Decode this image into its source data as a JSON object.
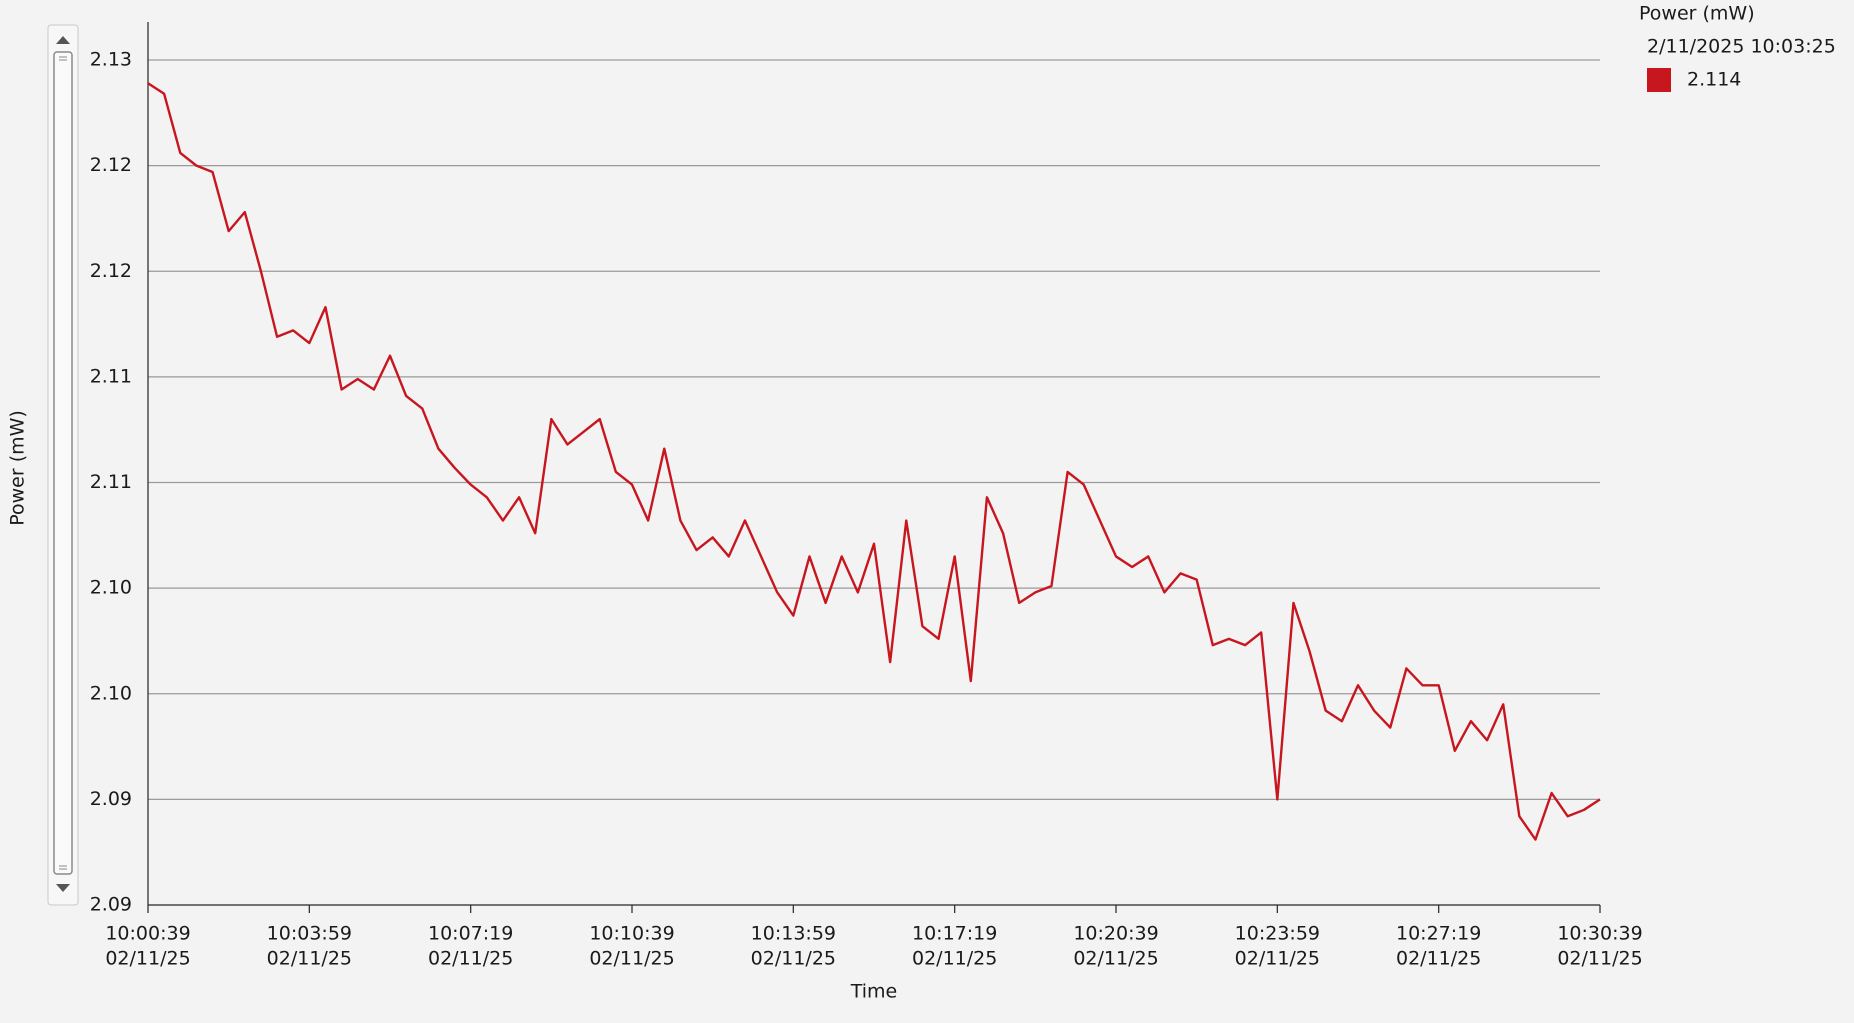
{
  "chart_data": {
    "type": "line",
    "xlabel": "Time",
    "ylabel": "Power (mW)",
    "ylim": [
      2.0875,
      2.1275
    ],
    "yticks": [
      {
        "value": 2.0875,
        "label": "2.09"
      },
      {
        "value": 2.0925,
        "label": "2.09"
      },
      {
        "value": 2.0975,
        "label": "2.10"
      },
      {
        "value": 2.1025,
        "label": "2.10"
      },
      {
        "value": 2.1075,
        "label": "2.11"
      },
      {
        "value": 2.1125,
        "label": "2.11"
      },
      {
        "value": 2.1175,
        "label": "2.12"
      },
      {
        "value": 2.1225,
        "label": "2.12"
      },
      {
        "value": 2.1275,
        "label": "2.13"
      }
    ],
    "xlim": [
      "2025-02-11T10:00:39",
      "2025-02-11T10:30:39"
    ],
    "xticks": [
      {
        "value": "2025-02-11T10:00:39",
        "label": [
          "10:00:39",
          "02/11/25"
        ]
      },
      {
        "value": "2025-02-11T10:03:59",
        "label": [
          "10:03:59",
          "02/11/25"
        ]
      },
      {
        "value": "2025-02-11T10:07:19",
        "label": [
          "10:07:19",
          "02/11/25"
        ]
      },
      {
        "value": "2025-02-11T10:10:39",
        "label": [
          "10:10:39",
          "02/11/25"
        ]
      },
      {
        "value": "2025-02-11T10:13:59",
        "label": [
          "10:13:59",
          "02/11/25"
        ]
      },
      {
        "value": "2025-02-11T10:17:19",
        "label": [
          "10:17:19",
          "02/11/25"
        ]
      },
      {
        "value": "2025-02-11T10:20:39",
        "label": [
          "10:20:39",
          "02/11/25"
        ]
      },
      {
        "value": "2025-02-11T10:23:59",
        "label": [
          "10:23:59",
          "02/11/25"
        ]
      },
      {
        "value": "2025-02-11T10:27:19",
        "label": [
          "10:27:19",
          "02/11/25"
        ]
      },
      {
        "value": "2025-02-11T10:30:39",
        "label": [
          "10:30:39",
          "02/11/25"
        ]
      }
    ],
    "grid": true,
    "x": [
      "2025-02-11T10:00:39",
      "2025-02-11T10:00:59",
      "2025-02-11T10:01:19",
      "2025-02-11T10:01:39",
      "2025-02-11T10:01:59",
      "2025-02-11T10:02:19",
      "2025-02-11T10:02:39",
      "2025-02-11T10:02:59",
      "2025-02-11T10:03:19",
      "2025-02-11T10:03:39",
      "2025-02-11T10:03:59",
      "2025-02-11T10:04:19",
      "2025-02-11T10:04:39",
      "2025-02-11T10:04:59",
      "2025-02-11T10:05:19",
      "2025-02-11T10:05:39",
      "2025-02-11T10:05:59",
      "2025-02-11T10:06:19",
      "2025-02-11T10:06:39",
      "2025-02-11T10:06:59",
      "2025-02-11T10:07:19",
      "2025-02-11T10:07:39",
      "2025-02-11T10:07:59",
      "2025-02-11T10:08:19",
      "2025-02-11T10:08:39",
      "2025-02-11T10:08:59",
      "2025-02-11T10:09:19",
      "2025-02-11T10:09:39",
      "2025-02-11T10:09:59",
      "2025-02-11T10:10:19",
      "2025-02-11T10:10:39",
      "2025-02-11T10:10:59",
      "2025-02-11T10:11:19",
      "2025-02-11T10:11:39",
      "2025-02-11T10:11:59",
      "2025-02-11T10:12:19",
      "2025-02-11T10:12:39",
      "2025-02-11T10:12:59",
      "2025-02-11T10:13:19",
      "2025-02-11T10:13:39",
      "2025-02-11T10:13:59",
      "2025-02-11T10:14:19",
      "2025-02-11T10:14:39",
      "2025-02-11T10:14:59",
      "2025-02-11T10:15:19",
      "2025-02-11T10:15:39",
      "2025-02-11T10:15:59",
      "2025-02-11T10:16:19",
      "2025-02-11T10:16:39",
      "2025-02-11T10:16:59",
      "2025-02-11T10:17:19",
      "2025-02-11T10:17:39",
      "2025-02-11T10:17:59",
      "2025-02-11T10:18:19",
      "2025-02-11T10:18:39",
      "2025-02-11T10:18:59",
      "2025-02-11T10:19:19",
      "2025-02-11T10:19:39",
      "2025-02-11T10:19:59",
      "2025-02-11T10:20:19",
      "2025-02-11T10:20:39",
      "2025-02-11T10:20:59",
      "2025-02-11T10:21:19",
      "2025-02-11T10:21:39",
      "2025-02-11T10:21:59",
      "2025-02-11T10:22:19",
      "2025-02-11T10:22:39",
      "2025-02-11T10:22:59",
      "2025-02-11T10:23:19",
      "2025-02-11T10:23:39",
      "2025-02-11T10:23:59",
      "2025-02-11T10:24:19",
      "2025-02-11T10:24:39",
      "2025-02-11T10:24:59",
      "2025-02-11T10:25:19",
      "2025-02-11T10:25:39",
      "2025-02-11T10:25:59",
      "2025-02-11T10:26:19",
      "2025-02-11T10:26:39",
      "2025-02-11T10:26:59",
      "2025-02-11T10:27:19",
      "2025-02-11T10:27:39",
      "2025-02-11T10:27:59",
      "2025-02-11T10:28:19",
      "2025-02-11T10:28:39",
      "2025-02-11T10:28:59",
      "2025-02-11T10:29:19",
      "2025-02-11T10:29:39",
      "2025-02-11T10:29:59",
      "2025-02-11T10:30:19",
      "2025-02-11T10:30:39"
    ],
    "series": [
      {
        "name": "Power (mW)",
        "color": "#c8161f",
        "values": [
          2.1264,
          2.1259,
          2.1231,
          2.1225,
          2.1222,
          2.1194,
          2.1203,
          2.1175,
          2.1144,
          2.1147,
          2.1141,
          2.1158,
          2.1119,
          2.1124,
          2.1119,
          2.1135,
          2.1116,
          2.111,
          2.1091,
          2.1082,
          2.1074,
          2.1068,
          2.1057,
          2.1068,
          2.1051,
          2.1105,
          2.1093,
          2.1099,
          2.1105,
          2.108,
          2.1074,
          2.1057,
          2.1091,
          2.1057,
          2.1043,
          2.1049,
          2.104,
          2.1057,
          2.104,
          2.1023,
          2.1012,
          2.104,
          2.1018,
          2.104,
          2.1023,
          2.1046,
          2.099,
          2.1057,
          2.1007,
          2.1001,
          2.104,
          2.0981,
          2.1068,
          2.1051,
          2.1018,
          2.1023,
          2.1026,
          2.108,
          2.1074,
          2.1057,
          2.104,
          2.1035,
          2.104,
          2.1023,
          2.1032,
          2.1029,
          2.0998,
          2.1001,
          2.0998,
          2.1004,
          2.0925,
          2.1018,
          2.0995,
          2.0967,
          2.0962,
          2.0979,
          2.0967,
          2.0959,
          2.0987,
          2.0979,
          2.0979,
          2.0948,
          2.0962,
          2.0953,
          2.097,
          2.0917,
          2.0906,
          2.0928,
          2.0917,
          2.092,
          2.0925
        ]
      }
    ],
    "legend": {
      "timestamp": "2/11/2025 10:03:25",
      "value": 2.114
    }
  }
}
